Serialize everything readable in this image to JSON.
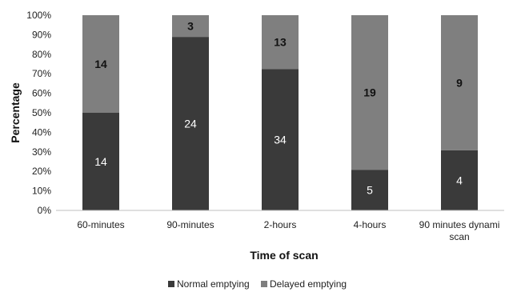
{
  "chart_data": {
    "type": "bar",
    "stacked": "percent",
    "categories": [
      [
        "60-minutes"
      ],
      [
        "90-minutes"
      ],
      [
        "2-hours"
      ],
      [
        "4-hours"
      ],
      [
        "90 minutes dynami",
        "scan"
      ]
    ],
    "series": [
      {
        "name": "Normal emptying",
        "values": [
          14,
          24,
          34,
          5,
          4
        ],
        "color": "#3a3a3a",
        "label_color": "#ffffff"
      },
      {
        "name": "Delayed emptying",
        "values": [
          14,
          3,
          13,
          19,
          9
        ],
        "color": "#7f7f7f",
        "label_color": "#111111"
      }
    ],
    "xlabel": "Time of scan",
    "ylabel": "Percentage",
    "ylim": [
      0,
      100
    ],
    "yticks": [
      "0%",
      "10%",
      "20%",
      "30%",
      "40%",
      "50%",
      "60%",
      "70%",
      "80%",
      "90%",
      "100%"
    ],
    "legend_position": "bottom",
    "grid": false
  }
}
